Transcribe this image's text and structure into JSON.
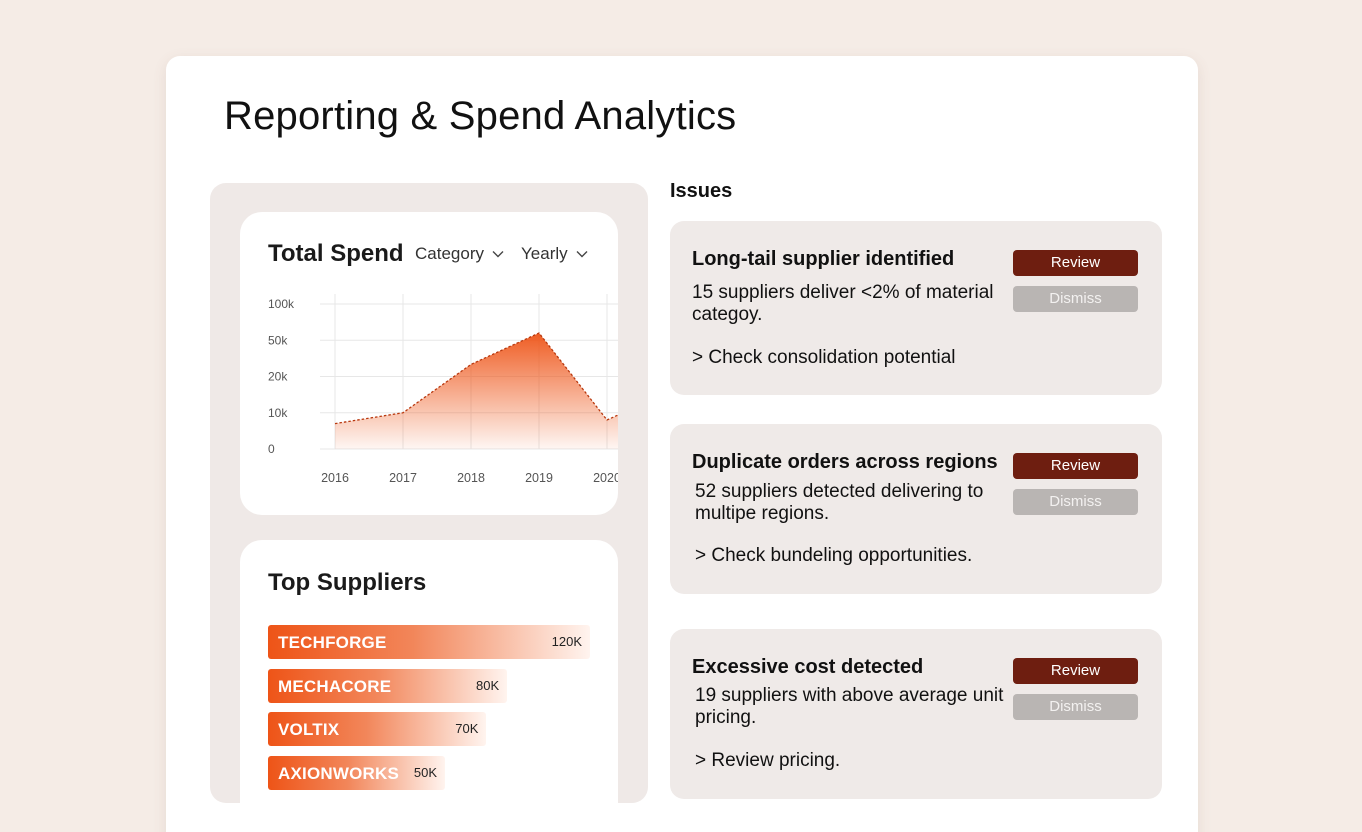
{
  "page_title": "Reporting & Spend Analytics",
  "spend": {
    "title": "Total Spend",
    "filter_category": "Category",
    "filter_period": "Yearly"
  },
  "chart_data": {
    "type": "area",
    "x": [
      "2016",
      "2017",
      "2018",
      "2019",
      "2020"
    ],
    "y_tick_labels": [
      "0",
      "10k",
      "20k",
      "50k",
      "100k"
    ],
    "values": [
      7000,
      10000,
      30000,
      60000,
      8000
    ],
    "accent": "#ee5417",
    "grid": true
  },
  "suppliers": {
    "title": "Top Suppliers",
    "items": [
      {
        "name": "TECHFORGE",
        "value_label": "120K",
        "value": 120000
      },
      {
        "name": "MECHACORE",
        "value_label": "80K",
        "value": 80000
      },
      {
        "name": "VOLTIX",
        "value_label": "70K",
        "value": 70000
      },
      {
        "name": "AXIONWORKS",
        "value_label": "50K",
        "value": 50000
      }
    ]
  },
  "issues": {
    "heading": "Issues",
    "items": [
      {
        "title": "Long-tail supplier identified",
        "description": "15 suppliers deliver <2% of material categoy.",
        "action": "> Check consolidation potential",
        "review_label": "Review",
        "dismiss_label": "Dismiss"
      },
      {
        "title": "Duplicate orders across regions",
        "description": "52 suppliers detected delivering to multipe regions.",
        "action": "> Check bundeling opportunities.",
        "review_label": "Review",
        "dismiss_label": "Dismiss"
      },
      {
        "title": "Excessive cost detected",
        "description": "19 suppliers with above average unit pricing.",
        "action": "> Review pricing.",
        "review_label": "Review",
        "dismiss_label": "Dismiss"
      }
    ]
  },
  "colors": {
    "review": "#6e1e10",
    "dismiss": "#b9b5b3",
    "panel": "#efe9e7",
    "background": "#f5ece6"
  }
}
